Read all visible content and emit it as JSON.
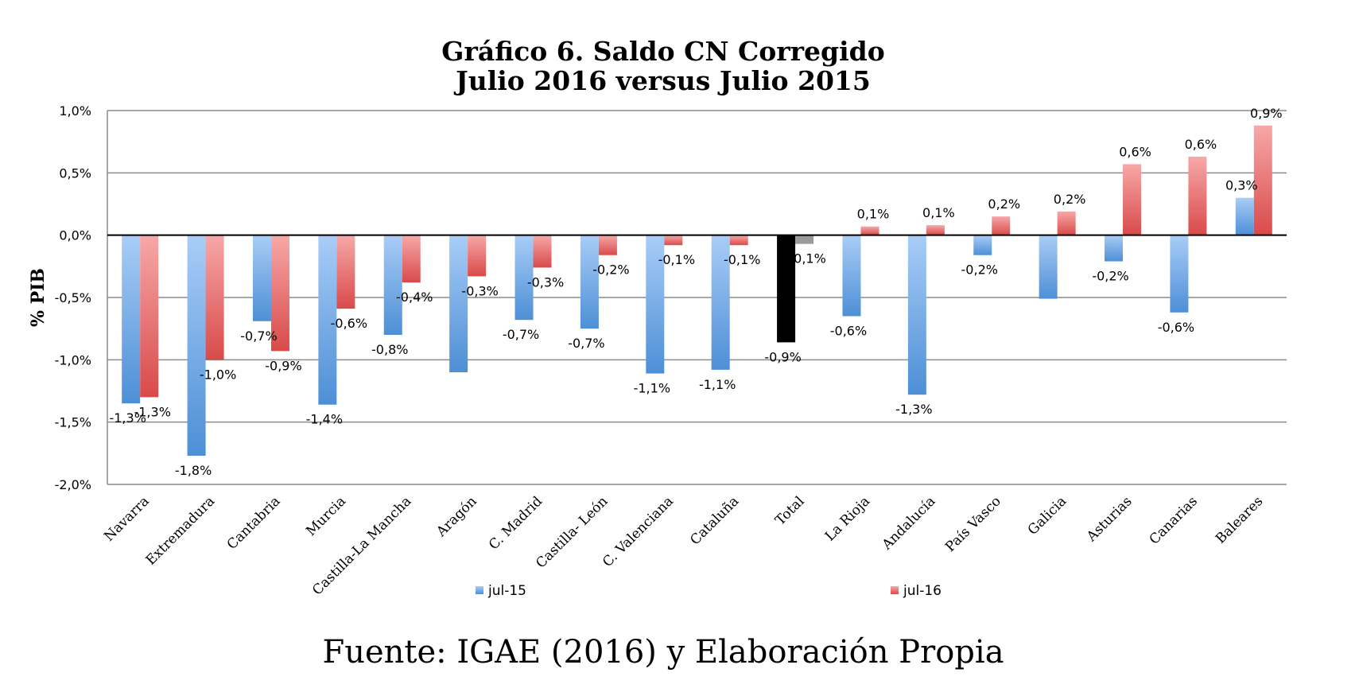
{
  "chart_data": {
    "type": "bar",
    "title_line1": "Gráfico 6. Saldo CN Corregido",
    "title_line2": "Julio 2016 versus Julio 2015",
    "ylabel": "% PIB",
    "xlabel": "",
    "ylim": [
      -2.0,
      1.0
    ],
    "yticks": [
      1.0,
      0.5,
      0.0,
      -0.5,
      -1.0,
      -1.5,
      -2.0
    ],
    "ytick_labels": [
      "1,0%",
      "0,5%",
      "0,0%",
      "-0,5%",
      "-1,0%",
      "-1,5%",
      "-2,0%"
    ],
    "grid": true,
    "legend_position": "bottom",
    "categories": [
      "Navarra",
      "Extremadura",
      "Cantabria",
      "Murcia",
      "Castilla-La Mancha",
      "Aragón",
      "C. Madrid",
      "Castilla- León",
      "C. Valenciana",
      "Cataluña",
      "Total",
      "La Rioja",
      "Andalucía",
      "País Vasco",
      "Galicia",
      "Asturias",
      "Canarias",
      "Baleares"
    ],
    "series": [
      {
        "name": "jul-15",
        "color_top": "#a9cdf7",
        "color_bottom": "#4d8fd6",
        "highlight_category": "Total",
        "highlight_color": "#000000",
        "values": [
          -1.35,
          -1.77,
          -0.69,
          -1.36,
          -0.8,
          -1.1,
          -0.68,
          -0.75,
          -1.11,
          -1.08,
          -0.86,
          -0.65,
          -1.28,
          -0.16,
          -0.51,
          -0.21,
          -0.62,
          0.3
        ],
        "labels": [
          "-1,3%",
          "-1,8%",
          "-0,7%",
          "-1,4%",
          "-0,8%",
          "",
          "-0,7%",
          "-0,7%",
          "-1,1%",
          "-1,1%",
          "-0,9%",
          "-0,6%",
          "-1,3%",
          "-0,2%",
          "",
          "-0,2%",
          "-0,6%",
          "0,3%"
        ]
      },
      {
        "name": "jul-16",
        "color_top": "#f7a8a8",
        "color_bottom": "#d94a4a",
        "highlight_category": "Total",
        "highlight_color": "#9a9a9a",
        "values": [
          -1.3,
          -1.0,
          -0.93,
          -0.59,
          -0.38,
          -0.33,
          -0.26,
          -0.16,
          -0.08,
          -0.08,
          -0.07,
          0.07,
          0.08,
          0.15,
          0.19,
          0.57,
          0.63,
          0.88
        ],
        "labels": [
          "-1,3%",
          "-1,0%",
          "-0,9%",
          "-0,6%",
          "-0,4%",
          "-0,3%",
          "-0,3%",
          "-0,2%",
          "-0,1%",
          "-0,1%",
          "-0,1%",
          "0,1%",
          "0,1%",
          "0,2%",
          "0,2%",
          "0,6%",
          "0,6%",
          "0,9%"
        ]
      }
    ]
  },
  "source_text": "Fuente: IGAE (2016) y Elaboración Propia"
}
